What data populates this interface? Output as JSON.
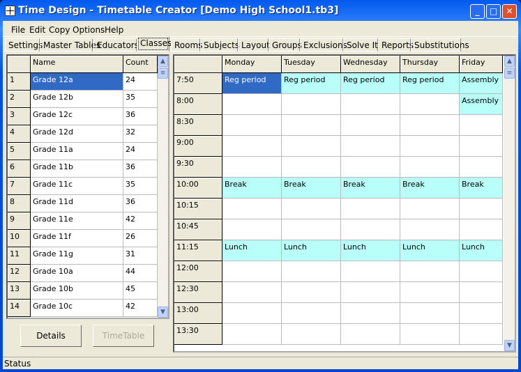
{
  "window": {
    "title": "Time Design - Timetable Creator [Demo High School1.tb3]"
  },
  "menu": [
    "File",
    "Edit",
    "Copy",
    "Options",
    "Help"
  ],
  "tabs": [
    "Settings",
    "Master Tables",
    "Educators",
    "Classes",
    "Rooms",
    "Subjects",
    "Layout",
    "Groups",
    "Exclusions",
    "Solve It",
    "Reports",
    "Substitutions"
  ],
  "active_tab": "Classes",
  "classes": {
    "headers": [
      "",
      "Name",
      "Count"
    ],
    "rows": [
      [
        "1",
        "Grade 12a",
        "24"
      ],
      [
        "2",
        "Grade 12b",
        "35"
      ],
      [
        "3",
        "Grade 12c",
        "36"
      ],
      [
        "4",
        "Grade 12d",
        "32"
      ],
      [
        "5",
        "Grade 11a",
        "24"
      ],
      [
        "6",
        "Grade 11b",
        "36"
      ],
      [
        "7",
        "Grade 11c",
        "35"
      ],
      [
        "8",
        "Grade 11d",
        "36"
      ],
      [
        "9",
        "Grade 11e",
        "42"
      ],
      [
        "10",
        "Grade 11f",
        "26"
      ],
      [
        "11",
        "Grade 11g",
        "31"
      ],
      [
        "12",
        "Grade 10a",
        "44"
      ],
      [
        "13",
        "Grade 10b",
        "45"
      ],
      [
        "14",
        "Grade 10c",
        "42"
      ]
    ],
    "selected_row": 0
  },
  "buttons": {
    "details": "Details",
    "timetable": "TimeTable"
  },
  "timetable": {
    "days": [
      "Monday",
      "Tuesday",
      "Wednesday",
      "Thursday",
      "Friday"
    ],
    "times": [
      "7:50",
      "8:00",
      "8:30",
      "9:00",
      "9:30",
      "10:00",
      "10:15",
      "10:45",
      "11:15",
      "12:00",
      "12:30",
      "13:00",
      "13:30"
    ],
    "cells": [
      [
        "Reg period",
        "Reg period",
        "Reg period",
        "Reg period",
        "Assembly"
      ],
      [
        "",
        "",
        "",
        "",
        "Assembly"
      ],
      [
        "",
        "",
        "",
        "",
        ""
      ],
      [
        "",
        "",
        "",
        "",
        ""
      ],
      [
        "",
        "",
        "",
        "",
        ""
      ],
      [
        "Break",
        "Break",
        "Break",
        "Break",
        "Break"
      ],
      [
        "",
        "",
        "",
        "",
        ""
      ],
      [
        "",
        "",
        "",
        "",
        ""
      ],
      [
        "Lunch",
        "Lunch",
        "Lunch",
        "Lunch",
        "Lunch"
      ],
      [
        "",
        "",
        "",
        "",
        ""
      ],
      [
        "",
        "",
        "",
        "",
        ""
      ],
      [
        "",
        "",
        "",
        "",
        ""
      ],
      [
        "",
        "",
        "",
        "",
        ""
      ]
    ]
  },
  "status": "Status",
  "colors": {
    "selection": "#316ac5",
    "filled_cell": "#b9fff9",
    "titlebar": "#0054e3"
  }
}
